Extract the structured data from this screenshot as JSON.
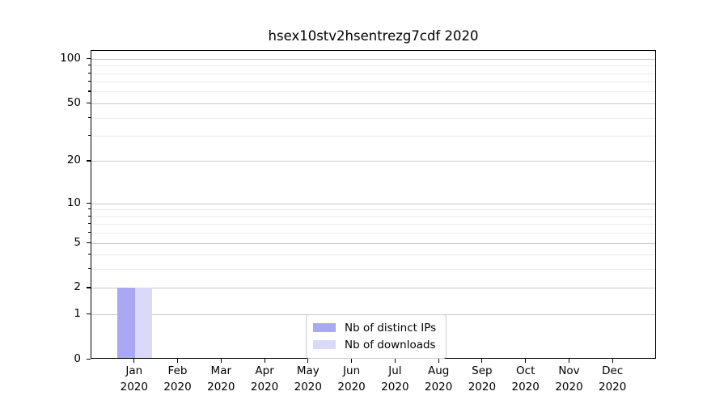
{
  "figure": {
    "title": "hsex10stv2hsentrezg7cdf 2020"
  },
  "chart_data": {
    "type": "bar",
    "title": "hsex10stv2hsentrezg7cdf 2020",
    "categories": [
      "Jan 2020",
      "Feb 2020",
      "Mar 2020",
      "Apr 2020",
      "May 2020",
      "Jun 2020",
      "Jul 2020",
      "Aug 2020",
      "Sep 2020",
      "Oct 2020",
      "Nov 2020",
      "Dec 2020"
    ],
    "x_tick_month": [
      "Jan",
      "Feb",
      "Mar",
      "Apr",
      "May",
      "Jun",
      "Jul",
      "Aug",
      "Sep",
      "Oct",
      "Nov",
      "Dec"
    ],
    "x_tick_year": "2020",
    "series": [
      {
        "name": "Nb of distinct IPs",
        "color": "#a8a8f3",
        "values": [
          2,
          0,
          0,
          0,
          0,
          0,
          0,
          0,
          0,
          0,
          0,
          0
        ]
      },
      {
        "name": "Nb of downloads",
        "color": "#dadaf8",
        "values": [
          2,
          0,
          0,
          0,
          0,
          0,
          0,
          0,
          0,
          0,
          0,
          0
        ]
      }
    ],
    "y_scale": "log1p",
    "y_major_ticks": [
      0,
      1,
      2,
      5,
      10,
      20,
      50,
      100
    ],
    "y_minor_ticks": [
      3,
      4,
      6,
      7,
      8,
      9,
      30,
      40,
      60,
      70,
      80,
      90
    ],
    "ylim": [
      0,
      113
    ],
    "grid": "horizontal",
    "legend": {
      "position": "bottom-center",
      "entries": [
        "Nb of distinct IPs",
        "Nb of downloads"
      ]
    },
    "colors": {
      "bar_distinct_ips": "#a8a8f3",
      "bar_downloads": "#dadaf8",
      "grid_major": "#c9c9c9",
      "grid_minor": "#ebebeb",
      "axis": "#000000",
      "legend_border": "#cccccc",
      "background": "#ffffff"
    }
  }
}
